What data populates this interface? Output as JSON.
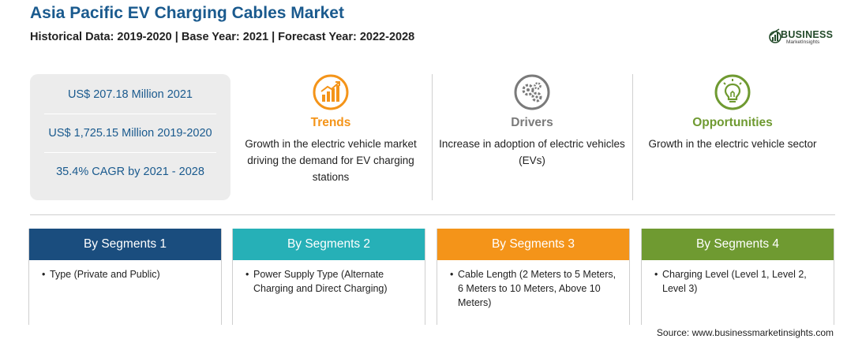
{
  "header": {
    "title": "Asia Pacific EV Charging Cables Market",
    "subtitle": "Historical Data: 2019-2020 | Base Year: 2021 | Forecast Year: 2022-2028"
  },
  "logo": {
    "name": "BUSINESS",
    "tagline": "MarketInsights",
    "color": "#234a2a"
  },
  "stats": [
    {
      "text": "US$ 207.18 Million 2021"
    },
    {
      "text": "US$ 1,725.15 Million 2019-2020"
    },
    {
      "text": "35.4% CAGR by 2021 - 2028"
    }
  ],
  "features": [
    {
      "label": "Trends",
      "text": "Growth in the electric vehicle market driving the demand for EV charging stations",
      "icon": "trend-chart-icon",
      "color": "#f49419"
    },
    {
      "label": "Drivers",
      "text": "Increase in adoption of electric vehicles (EVs)",
      "icon": "gears-icon",
      "color": "#7a7a7a"
    },
    {
      "label": "Opportunities",
      "text": "Growth in the electric vehicle sector",
      "icon": "lightbulb-icon",
      "color": "#6f9a31"
    }
  ],
  "segments": [
    {
      "title": "By Segments 1",
      "bullet": "•",
      "item": "Type (Private and Public)",
      "color": "#1a4d7e"
    },
    {
      "title": "By Segments 2",
      "bullet": "•",
      "item": "Power Supply Type (Alternate Charging and Direct Charging)",
      "color": "#26b0b7"
    },
    {
      "title": "By Segments 3",
      "bullet": "•",
      "item": "Cable Length (2 Meters to 5 Meters, 6 Meters to 10 Meters, Above 10 Meters)",
      "color": "#f49419"
    },
    {
      "title": "By Segments 4",
      "bullet": "•",
      "item": "Charging Level (Level 1, Level 2, Level 3)",
      "color": "#6f9a31"
    }
  ],
  "source": "Source: www.businessmarketinsights.com"
}
